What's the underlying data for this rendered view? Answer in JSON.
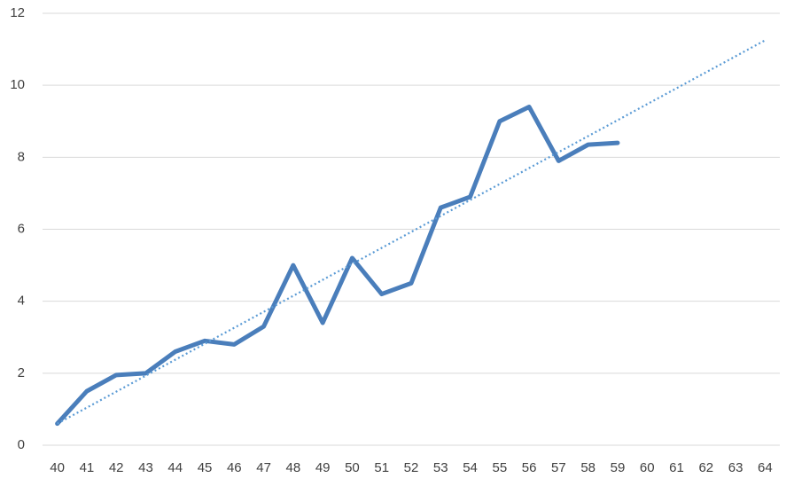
{
  "chart_data": {
    "type": "line",
    "categories": [
      "40",
      "41",
      "42",
      "43",
      "44",
      "45",
      "46",
      "47",
      "48",
      "49",
      "50",
      "51",
      "52",
      "53",
      "54",
      "55",
      "56",
      "57",
      "58",
      "59",
      "60",
      "61",
      "62",
      "63",
      "64"
    ],
    "series": [
      {
        "color": "#4a7ebb",
        "values": [
          0.6,
          1.5,
          1.95,
          2.0,
          2.6,
          2.9,
          2.8,
          3.3,
          5.0,
          3.4,
          5.2,
          4.2,
          4.5,
          6.6,
          6.9,
          9.0,
          9.4,
          7.9,
          8.35,
          8.4,
          null,
          null,
          null,
          null,
          null
        ]
      }
    ],
    "trendline": {
      "values": [
        0.6,
        11.25
      ],
      "color": "#5b9bd5",
      "style": "dotted"
    },
    "ylim": [
      0,
      12
    ],
    "yticks": [
      0,
      2,
      4,
      6,
      8,
      10,
      12
    ],
    "grid": true
  }
}
